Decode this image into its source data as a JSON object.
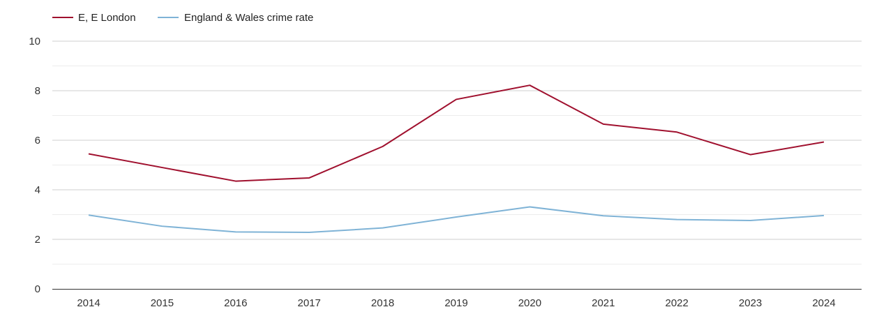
{
  "chart_data": {
    "type": "line",
    "title": "",
    "xlabel": "",
    "ylabel": "",
    "x": [
      2014,
      2015,
      2016,
      2017,
      2018,
      2019,
      2020,
      2021,
      2022,
      2023,
      2024
    ],
    "x_labels": [
      "2014",
      "2015",
      "2016",
      "2017",
      "2018",
      "2019",
      "2020",
      "2021",
      "2022",
      "2023",
      "2024"
    ],
    "ylim": [
      0,
      10
    ],
    "y_ticks": [
      0,
      2,
      4,
      6,
      8,
      10
    ],
    "y_tick_labels": [
      "0",
      "2",
      "4",
      "6",
      "8",
      "10"
    ],
    "grid": true,
    "legend_position": "top-left",
    "series": [
      {
        "name": "E, E London",
        "color": "#a0102e",
        "values": [
          5.45,
          4.9,
          4.35,
          4.48,
          5.75,
          7.65,
          8.22,
          6.65,
          6.33,
          5.42,
          5.93
        ]
      },
      {
        "name": "England & Wales crime rate",
        "color": "#7fb3d6",
        "values": [
          2.98,
          2.53,
          2.3,
          2.28,
          2.46,
          2.9,
          3.31,
          2.95,
          2.8,
          2.76,
          2.96
        ]
      }
    ]
  }
}
